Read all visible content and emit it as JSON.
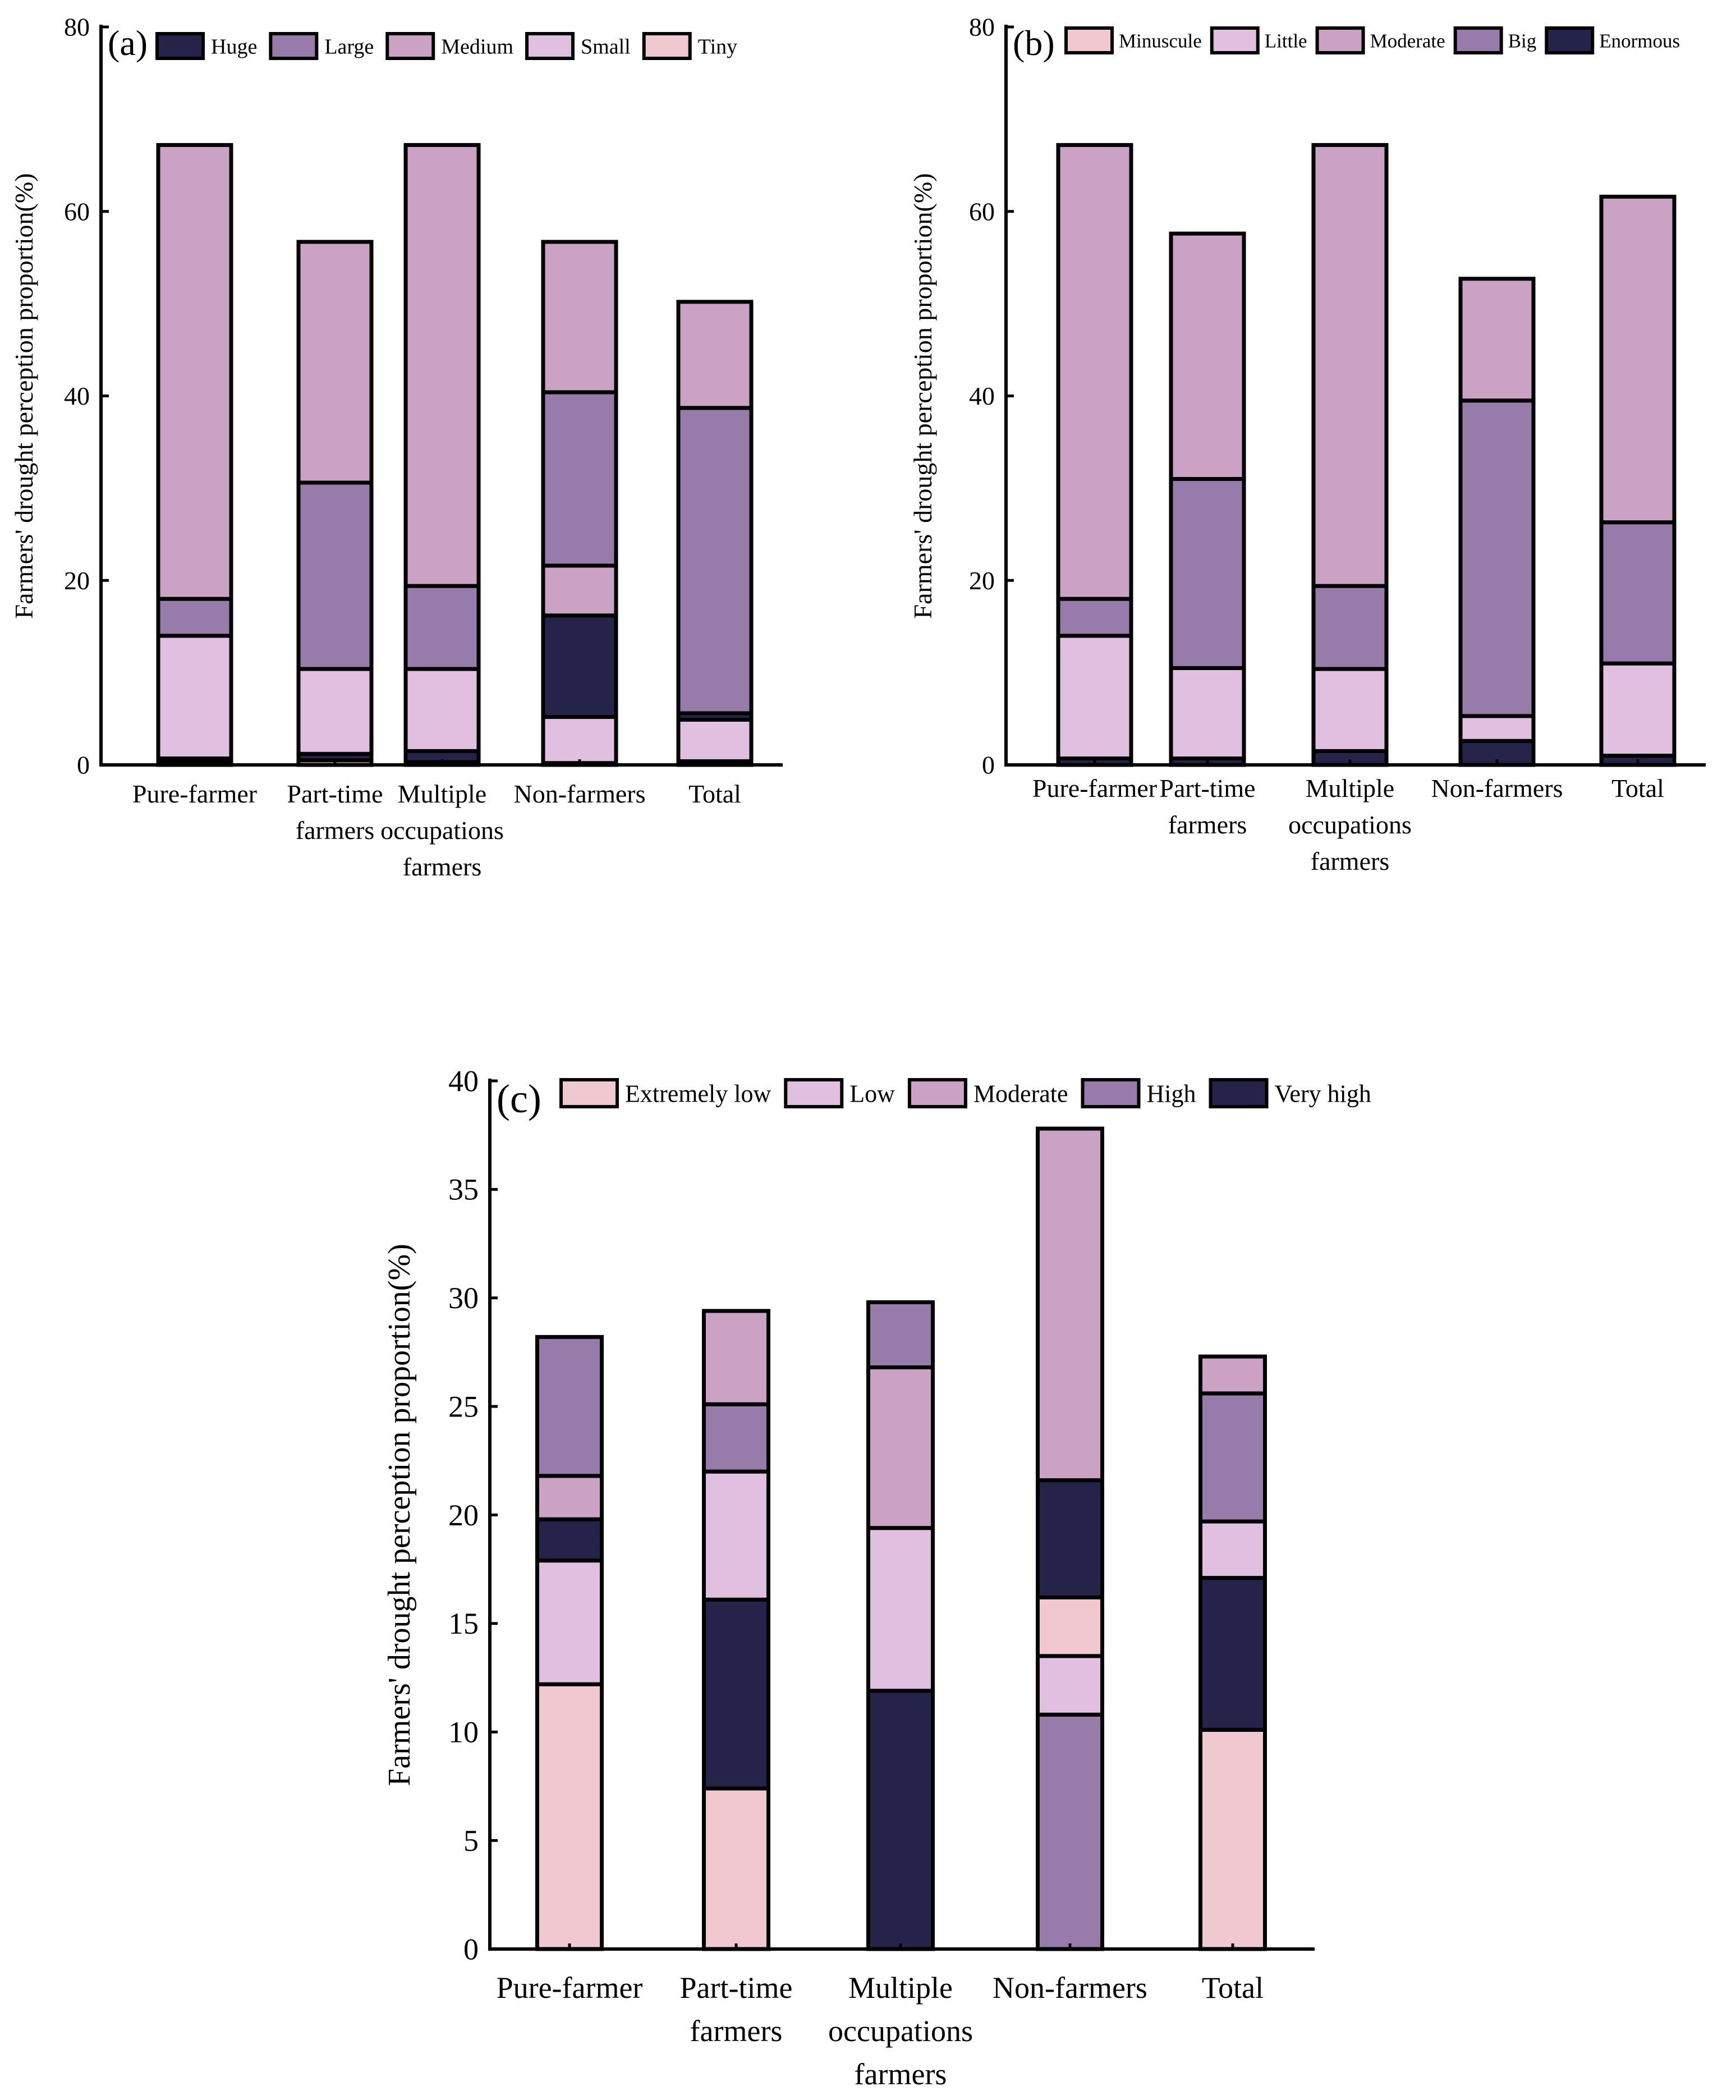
{
  "chart_data": [
    {
      "type": "bar",
      "stacked": true,
      "panel_label": "(a)",
      "title": "",
      "xlabel": "",
      "ylabel": "Farmers' drought perception proportion(%)",
      "ylim": [
        0,
        80
      ],
      "yticks": [
        0,
        20,
        40,
        60,
        80
      ],
      "categories": [
        "Pure-farmer",
        "Part-time\nfarmers",
        "Multiple\noccupations\nfarmers",
        "Non-farmers",
        "Total"
      ],
      "legend": [
        "Huge",
        "Large",
        "Medium",
        "Small",
        "Tiny"
      ],
      "stack_order": [
        "Tiny",
        "Huge",
        "Small",
        "Large",
        "Medium"
      ],
      "series": [
        {
          "name": "Tiny",
          "color": "#f1c8cf",
          "values": [
            0.3,
            0.5,
            0.3,
            0.2,
            0.4
          ]
        },
        {
          "name": "Huge",
          "color": "#26234a",
          "values": [
            0.4,
            0.7,
            1.2,
            0.0,
            0.0
          ]
        },
        {
          "name": "Small",
          "color": "#e0bfe0",
          "values": [
            13.3,
            9.2,
            8.9,
            5.0,
            4.5
          ]
        },
        {
          "name": "Large",
          "color": "#977bab",
          "values": [
            4.0,
            20.2,
            9.0,
            35.2,
            33.8
          ]
        },
        {
          "name": "Medium",
          "color": "#cba1c4",
          "values": [
            49.2,
            26.1,
            47.8,
            16.3,
            11.5
          ]
        }
      ],
      "overlay_segments": [
        {
          "category": "Non-farmers",
          "from": 5.2,
          "to": 16.2,
          "series": "Huge",
          "color": "#26234a"
        },
        {
          "category": "Non-farmers",
          "from": 16.2,
          "to": 21.6,
          "series": "Medium",
          "color": "#cba1c4"
        },
        {
          "category": "Total",
          "from": 4.9,
          "to": 5.6,
          "series": "Huge",
          "color": "#26234a"
        }
      ]
    },
    {
      "type": "bar",
      "stacked": true,
      "panel_label": "(b)",
      "title": "",
      "xlabel": "",
      "ylabel": "Farmers' drought perception proportion(%)",
      "ylim": [
        0,
        80
      ],
      "yticks": [
        0,
        20,
        40,
        60,
        80
      ],
      "categories": [
        "Pure-farmer",
        "Part-time\nfarmers",
        "Multiple\noccupations\nfarmers",
        "Non-farmers",
        "Total"
      ],
      "legend": [
        "Minuscule",
        "Little",
        "Moderate",
        "Big",
        "Enormous"
      ],
      "stack_order": [
        "Enormous",
        "Little",
        "Big",
        "Moderate"
      ],
      "series": [
        {
          "name": "Enormous",
          "color": "#26234a",
          "values": [
            0.7,
            0.7,
            1.5,
            2.6,
            1.0
          ]
        },
        {
          "name": "Little",
          "color": "#e0bfe0",
          "values": [
            13.3,
            9.8,
            8.9,
            2.7,
            10.0
          ]
        },
        {
          "name": "Big",
          "color": "#977bab",
          "values": [
            4.0,
            20.5,
            9.0,
            34.2,
            15.3
          ]
        },
        {
          "name": "Moderate",
          "color": "#cba1c4",
          "values": [
            49.2,
            26.6,
            47.8,
            13.2,
            35.3
          ]
        }
      ]
    },
    {
      "type": "bar",
      "stacked": true,
      "panel_label": "(c)",
      "title": "",
      "xlabel": "",
      "ylabel": "Farmers' drought perception proportion(%)",
      "ylim": [
        0,
        40
      ],
      "yticks": [
        0,
        5,
        10,
        15,
        20,
        25,
        30,
        35,
        40
      ],
      "categories": [
        "Pure-farmer",
        "Part-time\nfarmers",
        "Multiple\noccupations\nfarmers",
        "Non-farmers",
        "Total"
      ],
      "legend": [
        "Extremely low",
        "Low",
        "Moderate",
        "High",
        "Very high"
      ],
      "segments": [
        [
          {
            "series": "Extremely low",
            "color": "#f1c8cf",
            "from": 0,
            "to": 12.2
          },
          {
            "series": "Low",
            "color": "#e0bfe0",
            "from": 12.2,
            "to": 17.9
          },
          {
            "series": "Very high",
            "color": "#26234a",
            "from": 17.9,
            "to": 19.8
          },
          {
            "series": "Moderate",
            "color": "#cba1c4",
            "from": 19.8,
            "to": 21.8
          },
          {
            "series": "High",
            "color": "#977bab",
            "from": 21.8,
            "to": 28.2
          }
        ],
        [
          {
            "series": "Extremely low",
            "color": "#f1c8cf",
            "from": 0,
            "to": 7.4
          },
          {
            "series": "Very high",
            "color": "#26234a",
            "from": 7.4,
            "to": 16.1
          },
          {
            "series": "Low",
            "color": "#e0bfe0",
            "from": 16.1,
            "to": 22.0
          },
          {
            "series": "High",
            "color": "#977bab",
            "from": 22.0,
            "to": 25.1
          },
          {
            "series": "Moderate",
            "color": "#cba1c4",
            "from": 25.1,
            "to": 29.4
          }
        ],
        [
          {
            "series": "Very high",
            "color": "#26234a",
            "from": 0,
            "to": 11.9
          },
          {
            "series": "Low",
            "color": "#e0bfe0",
            "from": 11.9,
            "to": 19.4
          },
          {
            "series": "Moderate",
            "color": "#cba1c4",
            "from": 19.4,
            "to": 26.8
          },
          {
            "series": "High",
            "color": "#977bab",
            "from": 26.8,
            "to": 29.8
          }
        ],
        [
          {
            "series": "High",
            "color": "#977bab",
            "from": 0,
            "to": 10.8
          },
          {
            "series": "Low",
            "color": "#e0bfe0",
            "from": 10.8,
            "to": 13.5
          },
          {
            "series": "Extremely low",
            "color": "#f1c8cf",
            "from": 13.5,
            "to": 16.2
          },
          {
            "series": "Very high",
            "color": "#26234a",
            "from": 16.2,
            "to": 21.6
          },
          {
            "series": "Moderate",
            "color": "#cba1c4",
            "from": 21.6,
            "to": 37.8
          }
        ],
        [
          {
            "series": "Extremely low",
            "color": "#f1c8cf",
            "from": 0,
            "to": 10.1
          },
          {
            "series": "Very high",
            "color": "#26234a",
            "from": 10.1,
            "to": 17.1
          },
          {
            "series": "Low",
            "color": "#e0bfe0",
            "from": 17.1,
            "to": 19.7
          },
          {
            "series": "High",
            "color": "#977bab",
            "from": 19.7,
            "to": 25.6
          },
          {
            "series": "Moderate",
            "color": "#cba1c4",
            "from": 25.6,
            "to": 27.3
          }
        ]
      ]
    }
  ]
}
